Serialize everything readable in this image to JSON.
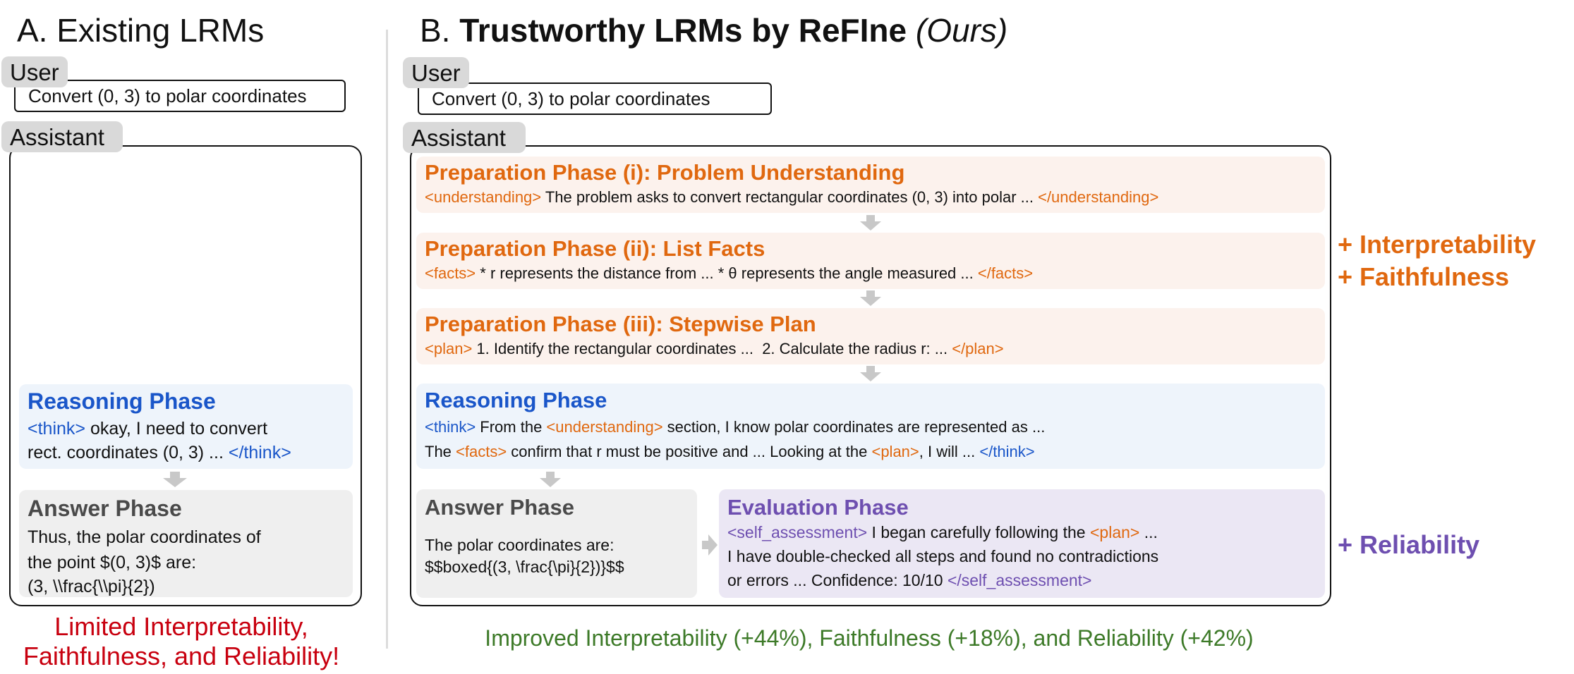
{
  "left": {
    "title_prefix": "A.",
    "title": "Existing LRMs",
    "user_tag": "User",
    "user_message": "Convert (0, 3) to polar coordinates",
    "assistant_tag": "Assistant",
    "reasoning": {
      "title": "Reasoning Phase",
      "open_tag": "<think>",
      "line1_text": " okay, I need to convert",
      "line2_text": "rect. coordinates (0, 3) ... ",
      "close_tag": "</think>"
    },
    "answer": {
      "title": "Answer Phase",
      "lines": [
        "Thus, the polar coordinates of",
        "the point $(0, 3)$ are:",
        "(3, \\\\frac{\\\\pi}{2})"
      ]
    },
    "verdict_lines": [
      "Limited Interpretability,",
      "Faithfulness, and Reliability!"
    ]
  },
  "right": {
    "title_prefix": "B.",
    "title_bold": "Trustworthy LRMs by ReFIne",
    "title_suffix": "(Ours)",
    "user_tag": "User",
    "user_message": "Convert (0, 3) to polar coordinates",
    "assistant_tag": "Assistant",
    "prep1": {
      "title": "Preparation Phase (i): Problem Understanding",
      "open_tag": "<understanding>",
      "text": " The problem asks to convert rectangular coordinates (0, 3) into polar ... ",
      "close_tag": "</understanding>"
    },
    "prep2": {
      "title": "Preparation Phase (ii): List Facts",
      "open_tag": "<facts>",
      "text": " * r represents the distance from ... * θ represents the angle measured ... ",
      "close_tag": "</facts>"
    },
    "prep3": {
      "title": "Preparation Phase (iii): Stepwise Plan",
      "open_tag": "<plan>",
      "text": " 1. Identify the rectangular coordinates ...  2. Calculate the radius r: ... ",
      "close_tag": "</plan>"
    },
    "reasoning": {
      "title": "Reasoning Phase",
      "l1_tag1": "<think>",
      "l1_t1": " From the ",
      "l1_tag2": "<understanding>",
      "l1_t2": " section, I know polar coordinates are represented as ...",
      "l2_t1": "The ",
      "l2_tag1": "<facts>",
      "l2_t2": " confirm that r must be positive and ... Looking at the ",
      "l2_tag2": "<plan>",
      "l2_t3": ", I will ... ",
      "l2_tag3": "</think>"
    },
    "answer": {
      "title": "Answer Phase",
      "lines": [
        "The polar coordinates are:",
        "$$boxed{(3, \\frac{\\pi}{2})}$$"
      ]
    },
    "evaluation": {
      "title": "Evaluation Phase",
      "l1_tag1": "<self_assessment>",
      "l1_t1": " I began carefully following the ",
      "l1_tag2": "<plan>",
      "l1_t2": " ...",
      "l2": "I have double-checked all steps and found no contradictions",
      "l3_t1": "or errors ... Confidence: 10/10 ",
      "l3_tag1": "</self_assessment>"
    },
    "side_labels": {
      "interpretability": "+ Interpretability",
      "faithfulness": "+ Faithfulness",
      "reliability": "+ Reliability"
    },
    "verdict": "Improved Interpretability (+44%), Faithfulness (+18%), and Reliability (+42%)"
  },
  "colors": {
    "preparation": "#e0680f",
    "reasoning": "#1a56c9",
    "answer": "#4a4a4a",
    "evaluation": "#6e4fb0",
    "limited": "#c8000f",
    "improved": "#3d7a28"
  },
  "icons": {
    "flow_arrow": "down-arrow-icon",
    "right_arrow": "right-arrow-icon"
  }
}
